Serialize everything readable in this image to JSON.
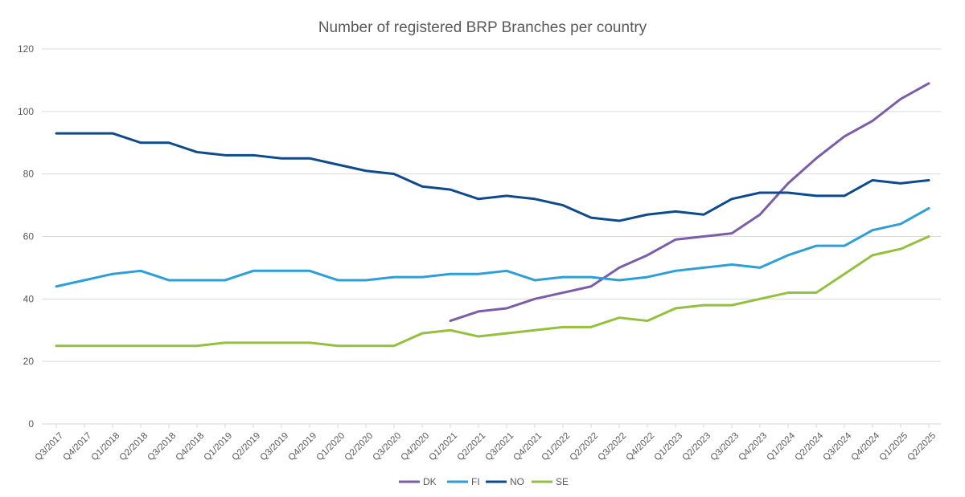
{
  "chart_data": {
    "type": "line",
    "title": "Number of registered BRP Branches per country",
    "xlabel": "",
    "ylabel": "",
    "ylim": [
      0,
      120
    ],
    "yticks": [
      0,
      20,
      40,
      60,
      80,
      100,
      120
    ],
    "grid": true,
    "legend_position": "bottom",
    "categories": [
      "Q3/2017",
      "Q4/2017",
      "Q1/2018",
      "Q2/2018",
      "Q3/2018",
      "Q4/2018",
      "Q1/2019",
      "Q2/2019",
      "Q3/2019",
      "Q4/2019",
      "Q1/2020",
      "Q2/2020",
      "Q3/2020",
      "Q4/2020",
      "Q1/2021",
      "Q2/2021",
      "Q3/2021",
      "Q4/2021",
      "Q1/2022",
      "Q2/2022",
      "Q3/2022",
      "Q4/2022",
      "Q1/2023",
      "Q2/2023",
      "Q3/2023",
      "Q4/2023",
      "Q1/2024",
      "Q2/2024",
      "Q3/2024",
      "Q4/2024",
      "Q1/2025",
      "Q2/2025"
    ],
    "series": [
      {
        "name": "DK",
        "color": "#7b5ea7",
        "values": [
          null,
          null,
          null,
          null,
          null,
          null,
          null,
          null,
          null,
          null,
          null,
          null,
          null,
          null,
          33,
          36,
          37,
          40,
          42,
          44,
          50,
          54,
          59,
          60,
          61,
          67,
          77,
          85,
          92,
          97,
          104,
          109
        ]
      },
      {
        "name": "FI",
        "color": "#2e9fd6",
        "values": [
          44,
          46,
          48,
          49,
          46,
          46,
          46,
          49,
          49,
          49,
          46,
          46,
          47,
          47,
          48,
          48,
          49,
          46,
          47,
          47,
          46,
          47,
          49,
          50,
          51,
          50,
          54,
          57,
          57,
          62,
          64,
          69
        ]
      },
      {
        "name": "NO",
        "color": "#0e4a8c",
        "values": [
          93,
          93,
          93,
          90,
          90,
          87,
          86,
          86,
          85,
          85,
          83,
          81,
          80,
          76,
          75,
          72,
          73,
          72,
          70,
          66,
          65,
          67,
          68,
          67,
          72,
          74,
          74,
          73,
          73,
          78,
          77,
          78
        ]
      },
      {
        "name": "SE",
        "color": "#94c13d",
        "values": [
          25,
          25,
          25,
          25,
          25,
          25,
          26,
          26,
          26,
          26,
          25,
          25,
          25,
          29,
          30,
          28,
          29,
          30,
          31,
          31,
          34,
          33,
          37,
          38,
          38,
          40,
          42,
          42,
          48,
          54,
          56,
          60
        ]
      }
    ]
  }
}
